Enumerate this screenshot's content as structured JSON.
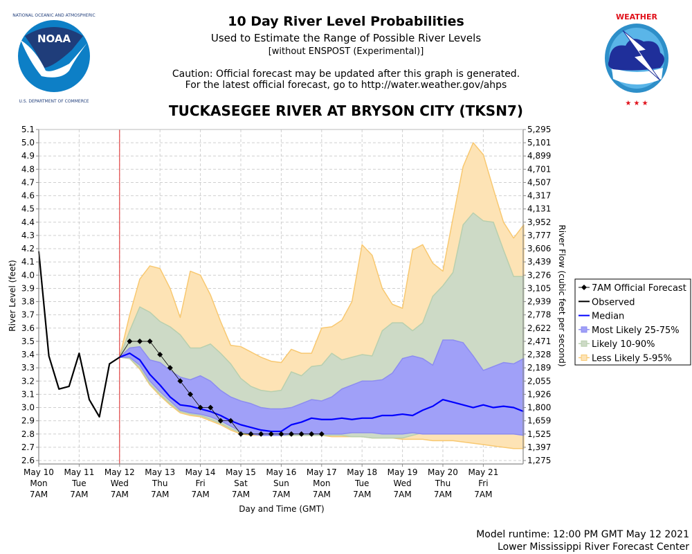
{
  "header": {
    "title": "10 Day River Level Probabilities",
    "subtitle": "Used to Estimate the Range of Possible River Levels",
    "subtitle2": "[without ENSPOST (Experimental)]",
    "caution1": "Caution: Official forecast may be updated after this graph is generated.",
    "caution2": "For the latest official forecast, go to http://water.weather.gov/ahps",
    "station": "TUCKASEGEE RIVER AT BRYSON CITY (TKSN7)"
  },
  "logos": {
    "left": {
      "name": "NOAA",
      "ring_text": "NATIONAL OCEANIC AND ATMOSPHERIC ADMINISTRATION",
      "bottom_text": "U.S. DEPARTMENT OF COMMERCE"
    },
    "right": {
      "ring_text": "NATIONAL WEATHER SERVICE"
    }
  },
  "footer": {
    "runtime": "Model runtime: 12:00 PM GMT May 12 2021",
    "center": "Lower Mississippi River Forecast Center"
  },
  "colors": {
    "observed": "#000000",
    "median": "#0000ff",
    "band_25_75": "#a0a0f8",
    "band_10_90": "#cddac6",
    "band_5_95": "#fde3b5",
    "band_5_95_edge": "#f8c870",
    "band_10_90_edge": "#b8cfae",
    "band_25_75_edge": "#8c8cf0",
    "now_line": "#dd2222"
  },
  "chart_data": {
    "type": "area",
    "title": "TUCKASEGEE RIVER AT BRYSON CITY (TKSN7)",
    "xlabel": "Day and Time (GMT)",
    "ylabel": "River Level (feet)",
    "y2label": "River Flow (cubic feet per second)",
    "x_units": "hours since May 10 7AM GMT",
    "xlim": [
      0,
      288
    ],
    "ylim": [
      2.6,
      5.1
    ],
    "grid": true,
    "legend_position": "right",
    "now_marker_x": 48,
    "x_ticks": [
      {
        "x": 0,
        "label": [
          "May 10",
          "Mon",
          "7AM"
        ]
      },
      {
        "x": 24,
        "label": [
          "May 11",
          "Tue",
          "7AM"
        ]
      },
      {
        "x": 48,
        "label": [
          "May 12",
          "Wed",
          "7AM"
        ]
      },
      {
        "x": 72,
        "label": [
          "May 13",
          "Thu",
          "7AM"
        ]
      },
      {
        "x": 96,
        "label": [
          "May 14",
          "Fri",
          "7AM"
        ]
      },
      {
        "x": 120,
        "label": [
          "May 15",
          "Sat",
          "7AM"
        ]
      },
      {
        "x": 144,
        "label": [
          "May 16",
          "Sun",
          "7AM"
        ]
      },
      {
        "x": 168,
        "label": [
          "May 17",
          "Mon",
          "7AM"
        ]
      },
      {
        "x": 192,
        "label": [
          "May 18",
          "Tue",
          "7AM"
        ]
      },
      {
        "x": 216,
        "label": [
          "May 19",
          "Wed",
          "7AM"
        ]
      },
      {
        "x": 240,
        "label": [
          "May 20",
          "Thu",
          "7AM"
        ]
      },
      {
        "x": 264,
        "label": [
          "May 21",
          "Fri",
          "7AM"
        ]
      }
    ],
    "y_ticks": [
      2.6,
      2.7,
      2.8,
      2.9,
      3.0,
      3.1,
      3.2,
      3.3,
      3.4,
      3.5,
      3.6,
      3.7,
      3.8,
      3.9,
      4.0,
      4.1,
      4.2,
      4.3,
      4.4,
      4.5,
      4.6,
      4.7,
      4.8,
      4.9,
      5.0,
      5.1
    ],
    "y2_ticks": [
      "1,275",
      "1,397",
      "1,525",
      "1,659",
      "1,800",
      "1,926",
      "2,055",
      "2,189",
      "2,328",
      "2,471",
      "2,622",
      "2,778",
      "2,939",
      "3,105",
      "3,276",
      "3,439",
      "3,606",
      "3,777",
      "3,952",
      "4,131",
      "4,317",
      "4,507",
      "4,701",
      "4,899",
      "5,101",
      "5,295"
    ],
    "legend": [
      {
        "key": "official",
        "label": "7AM Official Forecast"
      },
      {
        "key": "observed",
        "label": "Observed"
      },
      {
        "key": "median",
        "label": "Median"
      },
      {
        "key": "b25",
        "label": "Most Likely 25-75%"
      },
      {
        "key": "b10",
        "label": "Likely 10-90%"
      },
      {
        "key": "b5",
        "label": "Less Likely 5-95%"
      }
    ],
    "observed": {
      "x": [
        0,
        6,
        12,
        18,
        24,
        30,
        36,
        42,
        48
      ],
      "y": [
        4.18,
        3.39,
        3.14,
        3.16,
        3.41,
        3.06,
        2.93,
        3.33,
        3.38
      ]
    },
    "official_forecast": {
      "x": [
        54,
        60,
        66,
        72,
        78,
        84,
        90,
        96,
        102,
        108,
        114,
        120,
        126,
        132,
        138,
        144,
        150,
        156,
        162,
        168
      ],
      "y": [
        3.5,
        3.5,
        3.5,
        3.4,
        3.3,
        3.2,
        3.1,
        3.0,
        3.0,
        2.9,
        2.9,
        2.8,
        2.8,
        2.8,
        2.8,
        2.8,
        2.8,
        2.8,
        2.8,
        2.8
      ]
    },
    "forecast_x": [
      48,
      54,
      60,
      66,
      72,
      78,
      84,
      90,
      96,
      102,
      108,
      114,
      120,
      126,
      132,
      138,
      144,
      150,
      156,
      162,
      168,
      174,
      180,
      186,
      192,
      198,
      204,
      210,
      216,
      222,
      228,
      234,
      240,
      246,
      252,
      258,
      264,
      270,
      276,
      282,
      288
    ],
    "median": [
      3.38,
      3.41,
      3.36,
      3.25,
      3.17,
      3.08,
      3.02,
      3.01,
      2.99,
      2.97,
      2.94,
      2.9,
      2.87,
      2.85,
      2.83,
      2.82,
      2.82,
      2.87,
      2.89,
      2.92,
      2.91,
      2.91,
      2.92,
      2.91,
      2.92,
      2.92,
      2.94,
      2.94,
      2.95,
      2.94,
      2.98,
      3.01,
      3.06,
      3.04,
      3.02,
      3.0,
      3.02,
      3.0,
      3.01,
      3.0,
      2.97
    ],
    "p25": [
      3.38,
      3.38,
      3.32,
      3.2,
      3.12,
      3.05,
      2.98,
      2.96,
      2.95,
      2.93,
      2.9,
      2.86,
      2.82,
      2.8,
      2.79,
      2.79,
      2.79,
      2.8,
      2.8,
      2.8,
      2.8,
      2.8,
      2.8,
      2.81,
      2.81,
      2.81,
      2.8,
      2.8,
      2.8,
      2.81,
      2.8,
      2.8,
      2.8,
      2.8,
      2.8,
      2.8,
      2.8,
      2.8,
      2.8,
      2.8,
      2.79
    ],
    "p75": [
      3.38,
      3.45,
      3.46,
      3.36,
      3.34,
      3.28,
      3.23,
      3.21,
      3.24,
      3.2,
      3.13,
      3.08,
      3.05,
      3.03,
      3.0,
      2.99,
      2.99,
      3.0,
      3.03,
      3.06,
      3.05,
      3.08,
      3.14,
      3.17,
      3.2,
      3.2,
      3.21,
      3.26,
      3.37,
      3.39,
      3.37,
      3.32,
      3.51,
      3.51,
      3.49,
      3.39,
      3.28,
      3.31,
      3.34,
      3.33,
      3.37
    ],
    "p10": [
      3.38,
      3.37,
      3.3,
      3.18,
      3.1,
      3.03,
      2.97,
      2.95,
      2.94,
      2.91,
      2.88,
      2.84,
      2.81,
      2.8,
      2.79,
      2.79,
      2.79,
      2.79,
      2.79,
      2.79,
      2.79,
      2.79,
      2.79,
      2.78,
      2.78,
      2.77,
      2.77,
      2.77,
      2.77,
      2.79,
      2.81,
      2.84,
      2.86,
      2.85,
      2.84,
      2.82,
      2.83,
      2.83,
      2.82,
      2.82,
      2.81
    ],
    "p90": [
      3.38,
      3.58,
      3.76,
      3.72,
      3.65,
      3.61,
      3.55,
      3.45,
      3.45,
      3.48,
      3.41,
      3.33,
      3.22,
      3.16,
      3.13,
      3.12,
      3.13,
      3.27,
      3.24,
      3.31,
      3.32,
      3.41,
      3.36,
      3.38,
      3.4,
      3.39,
      3.58,
      3.64,
      3.64,
      3.58,
      3.64,
      3.84,
      3.92,
      4.02,
      4.38,
      4.47,
      4.41,
      4.4,
      4.19,
      3.99,
      3.99
    ],
    "p5": [
      3.38,
      3.37,
      3.29,
      3.17,
      3.09,
      3.02,
      2.96,
      2.94,
      2.93,
      2.9,
      2.87,
      2.83,
      2.8,
      2.79,
      2.79,
      2.79,
      2.79,
      2.79,
      2.79,
      2.79,
      2.79,
      2.78,
      2.78,
      2.78,
      2.78,
      2.77,
      2.77,
      2.77,
      2.76,
      2.76,
      2.76,
      2.75,
      2.75,
      2.75,
      2.74,
      2.73,
      2.72,
      2.71,
      2.7,
      2.69,
      2.69
    ],
    "p95": [
      3.38,
      3.7,
      3.97,
      4.07,
      4.05,
      3.9,
      3.68,
      4.03,
      4.0,
      3.85,
      3.65,
      3.47,
      3.46,
      3.42,
      3.38,
      3.35,
      3.34,
      3.44,
      3.41,
      3.41,
      3.6,
      3.61,
      3.66,
      3.8,
      4.23,
      4.15,
      3.9,
      3.78,
      3.75,
      4.19,
      4.23,
      4.09,
      4.03,
      4.43,
      4.82,
      5.0,
      4.91,
      4.65,
      4.4,
      4.28,
      4.38
    ]
  }
}
